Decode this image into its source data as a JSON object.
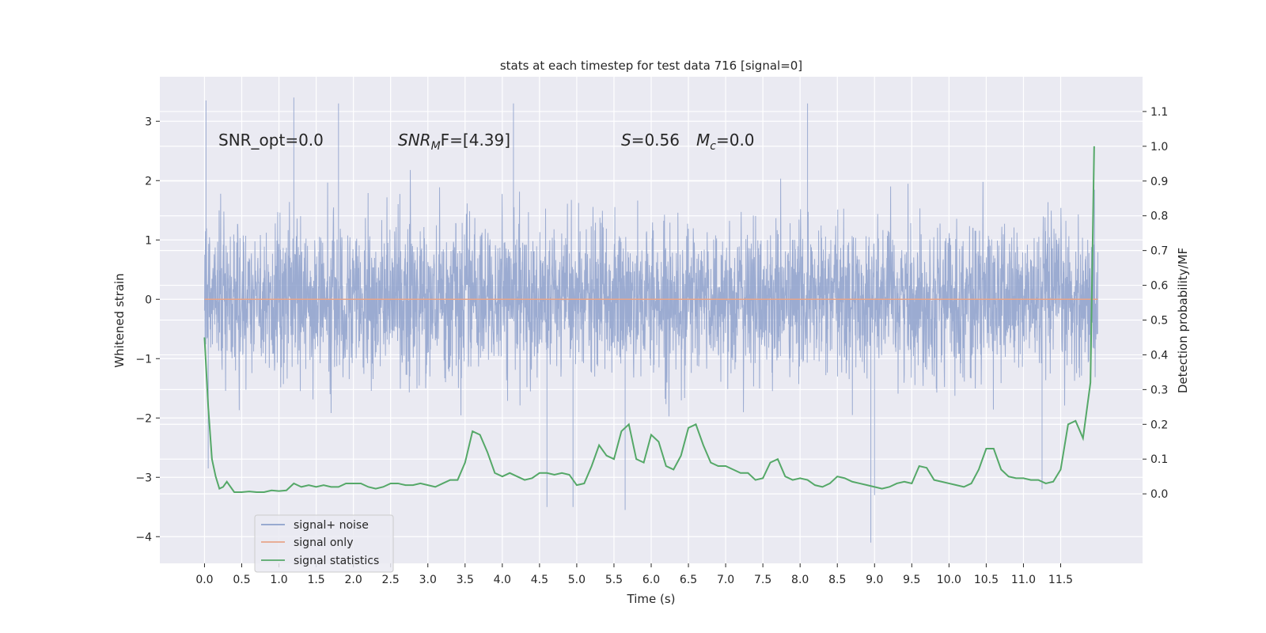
{
  "chart_data": {
    "type": "line",
    "title": "stats at each timestep for test data 716 [signal=0]",
    "xlabel": "Time (s)",
    "ylabel": "Whitened strain",
    "y2label": "Detection probability/MF",
    "xlim": [
      -0.6,
      12.6
    ],
    "ylim": [
      -4.45,
      3.75
    ],
    "y2lim": [
      -0.2,
      1.2
    ],
    "xticks": [
      0.0,
      0.5,
      1.0,
      1.5,
      2.0,
      2.5,
      3.0,
      3.5,
      4.0,
      4.5,
      5.0,
      5.5,
      6.0,
      6.5,
      7.0,
      7.5,
      8.0,
      8.5,
      9.0,
      9.5,
      10.0,
      10.5,
      11.0,
      11.5
    ],
    "xtick_labels": [
      "0.0",
      "0.5",
      "1.0",
      "1.5",
      "2.0",
      "2.5",
      "3.0",
      "3.5",
      "4.0",
      "4.5",
      "5.0",
      "5.5",
      "6.0",
      "6.5",
      "7.0",
      "7.5",
      "8.0",
      "8.5",
      "9.0",
      "9.5",
      "10.0",
      "10.5",
      "11.0",
      "11.5"
    ],
    "yticks": [
      -4,
      -3,
      -2,
      -1,
      0,
      1,
      2,
      3
    ],
    "ytick_labels": [
      "−4",
      "−3",
      "−2",
      "−1",
      "0",
      "1",
      "2",
      "3"
    ],
    "y2ticks": [
      0.0,
      0.1,
      0.2,
      0.3,
      0.4,
      0.5,
      0.6,
      0.7,
      0.8,
      0.9,
      1.0,
      1.1
    ],
    "y2tick_labels": [
      "0.0",
      "0.1",
      "0.2",
      "0.3",
      "0.4",
      "0.5",
      "0.6",
      "0.7",
      "0.8",
      "0.9",
      "1.0",
      "1.1"
    ],
    "grid": true,
    "legend_position": "lower-left",
    "annotations": {
      "snr_opt": "SNR_opt=0.0",
      "snr_mf_main": "SNR",
      "snr_mf_sub": "M",
      "snr_mf_rest": "F=[4.39]",
      "s_main": "S",
      "s_rest": "=0.56",
      "mc_main": "M",
      "mc_sub": "c",
      "mc_rest": "=0.0"
    },
    "series": [
      {
        "name": "signal+ noise",
        "color": "#8da0cb",
        "axis": "left",
        "kind": "noise",
        "x_range": [
          0.0,
          12.0
        ],
        "typical_range": [
          -1.5,
          1.45
        ],
        "max_abs": 4.1,
        "peaks": [
          [
            0.02,
            3.35
          ],
          [
            0.05,
            -2.85
          ],
          [
            1.2,
            3.4
          ],
          [
            1.8,
            3.3
          ],
          [
            4.15,
            3.3
          ],
          [
            4.6,
            -3.5
          ],
          [
            4.95,
            -3.5
          ],
          [
            5.65,
            -3.55
          ],
          [
            8.1,
            3.3
          ],
          [
            8.95,
            -4.1
          ],
          [
            9.0,
            -3.3
          ],
          [
            11.25,
            -3.2
          ]
        ]
      },
      {
        "name": "signal only",
        "color": "#e8a488",
        "axis": "left",
        "x": [
          0.0,
          12.0
        ],
        "y": [
          0.0,
          0.0
        ]
      },
      {
        "name": "signal statistics",
        "color": "#55a868",
        "axis": "right",
        "x": [
          0.0,
          0.05,
          0.1,
          0.15,
          0.2,
          0.25,
          0.3,
          0.4,
          0.5,
          0.6,
          0.7,
          0.8,
          0.9,
          1.0,
          1.1,
          1.2,
          1.3,
          1.4,
          1.5,
          1.6,
          1.7,
          1.8,
          1.9,
          2.0,
          2.1,
          2.2,
          2.3,
          2.4,
          2.5,
          2.6,
          2.7,
          2.8,
          2.9,
          3.0,
          3.1,
          3.2,
          3.3,
          3.4,
          3.5,
          3.6,
          3.7,
          3.8,
          3.9,
          4.0,
          4.1,
          4.2,
          4.3,
          4.4,
          4.5,
          4.6,
          4.7,
          4.8,
          4.9,
          5.0,
          5.1,
          5.2,
          5.3,
          5.4,
          5.5,
          5.6,
          5.7,
          5.8,
          5.9,
          6.0,
          6.1,
          6.2,
          6.3,
          6.4,
          6.5,
          6.6,
          6.7,
          6.8,
          6.9,
          7.0,
          7.1,
          7.2,
          7.3,
          7.4,
          7.5,
          7.6,
          7.7,
          7.8,
          7.9,
          8.0,
          8.1,
          8.2,
          8.3,
          8.4,
          8.5,
          8.6,
          8.7,
          8.8,
          8.9,
          9.0,
          9.1,
          9.2,
          9.3,
          9.4,
          9.5,
          9.6,
          9.7,
          9.8,
          9.9,
          10.0,
          10.1,
          10.2,
          10.3,
          10.4,
          10.5,
          10.6,
          10.7,
          10.8,
          10.9,
          11.0,
          11.1,
          11.2,
          11.3,
          11.4,
          11.5,
          11.6,
          11.7,
          11.8,
          11.9,
          11.95
        ],
        "y": [
          0.45,
          0.25,
          0.1,
          0.05,
          0.015,
          0.02,
          0.035,
          0.005,
          0.005,
          0.007,
          0.005,
          0.005,
          0.01,
          0.008,
          0.01,
          0.03,
          0.02,
          0.025,
          0.02,
          0.025,
          0.02,
          0.02,
          0.03,
          0.03,
          0.03,
          0.02,
          0.015,
          0.02,
          0.03,
          0.03,
          0.025,
          0.025,
          0.03,
          0.025,
          0.02,
          0.03,
          0.04,
          0.04,
          0.09,
          0.18,
          0.17,
          0.12,
          0.06,
          0.05,
          0.06,
          0.05,
          0.04,
          0.045,
          0.06,
          0.06,
          0.055,
          0.06,
          0.055,
          0.025,
          0.03,
          0.08,
          0.14,
          0.11,
          0.1,
          0.18,
          0.2,
          0.1,
          0.09,
          0.17,
          0.15,
          0.08,
          0.07,
          0.11,
          0.19,
          0.2,
          0.14,
          0.09,
          0.08,
          0.08,
          0.07,
          0.06,
          0.06,
          0.04,
          0.045,
          0.09,
          0.1,
          0.05,
          0.04,
          0.045,
          0.04,
          0.025,
          0.02,
          0.03,
          0.05,
          0.045,
          0.035,
          0.03,
          0.025,
          0.02,
          0.015,
          0.02,
          0.03,
          0.035,
          0.03,
          0.08,
          0.075,
          0.04,
          0.035,
          0.03,
          0.025,
          0.02,
          0.03,
          0.07,
          0.13,
          0.13,
          0.07,
          0.05,
          0.045,
          0.045,
          0.04,
          0.04,
          0.03,
          0.035,
          0.07,
          0.2,
          0.21,
          0.16,
          0.32,
          1.0
        ]
      }
    ]
  }
}
